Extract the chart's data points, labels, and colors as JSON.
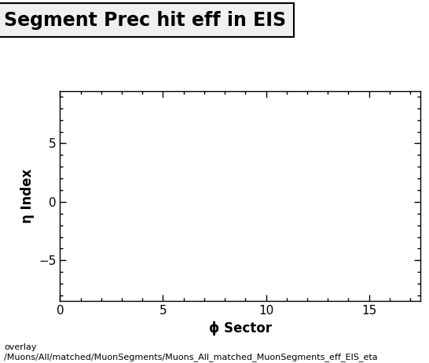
{
  "title": "Segment Prec hit eff in EIS",
  "xlabel": "ϕ Sector",
  "ylabel": "η Index",
  "xlim": [
    0,
    17.5
  ],
  "ylim": [
    -8.5,
    9.5
  ],
  "xticks": [
    0,
    5,
    10,
    15
  ],
  "yticks": [
    -5,
    0,
    5
  ],
  "caption_line1": "overlay",
  "caption_line2": "/Muons/All/matched/MuonSegments/Muons_All_matched_MuonSegments_eff_EIS_eta",
  "background_color": "#ffffff",
  "plot_bg_color": "#ffffff",
  "title_fontsize": 17,
  "axis_label_fontsize": 12,
  "tick_fontsize": 11,
  "caption_fontsize": 8
}
